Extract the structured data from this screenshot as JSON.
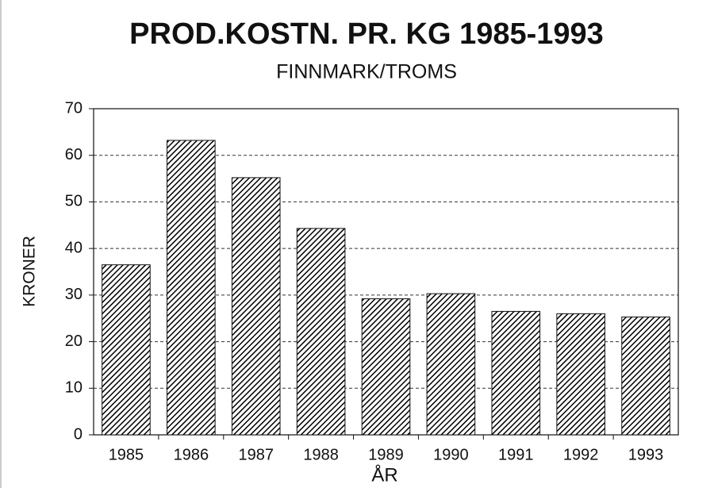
{
  "chart_data": {
    "type": "bar",
    "title": "PROD.KOSTN. PR. KG 1985-1993",
    "subtitle": "FINNMARK/TROMS",
    "x_label": "ÅR",
    "y_label": "KRONER",
    "categories": [
      "1985",
      "1986",
      "1987",
      "1988",
      "1989",
      "1990",
      "1991",
      "1992",
      "1993"
    ],
    "values": [
      36.5,
      63.2,
      55.2,
      44.3,
      29.2,
      30.3,
      26.5,
      26,
      25.3
    ],
    "color": "#000000",
    "pattern": "hatch",
    "ylim": [
      0,
      70
    ],
    "yticks": [
      0,
      10,
      20,
      30,
      40,
      50,
      60,
      70
    ],
    "grid": true
  }
}
